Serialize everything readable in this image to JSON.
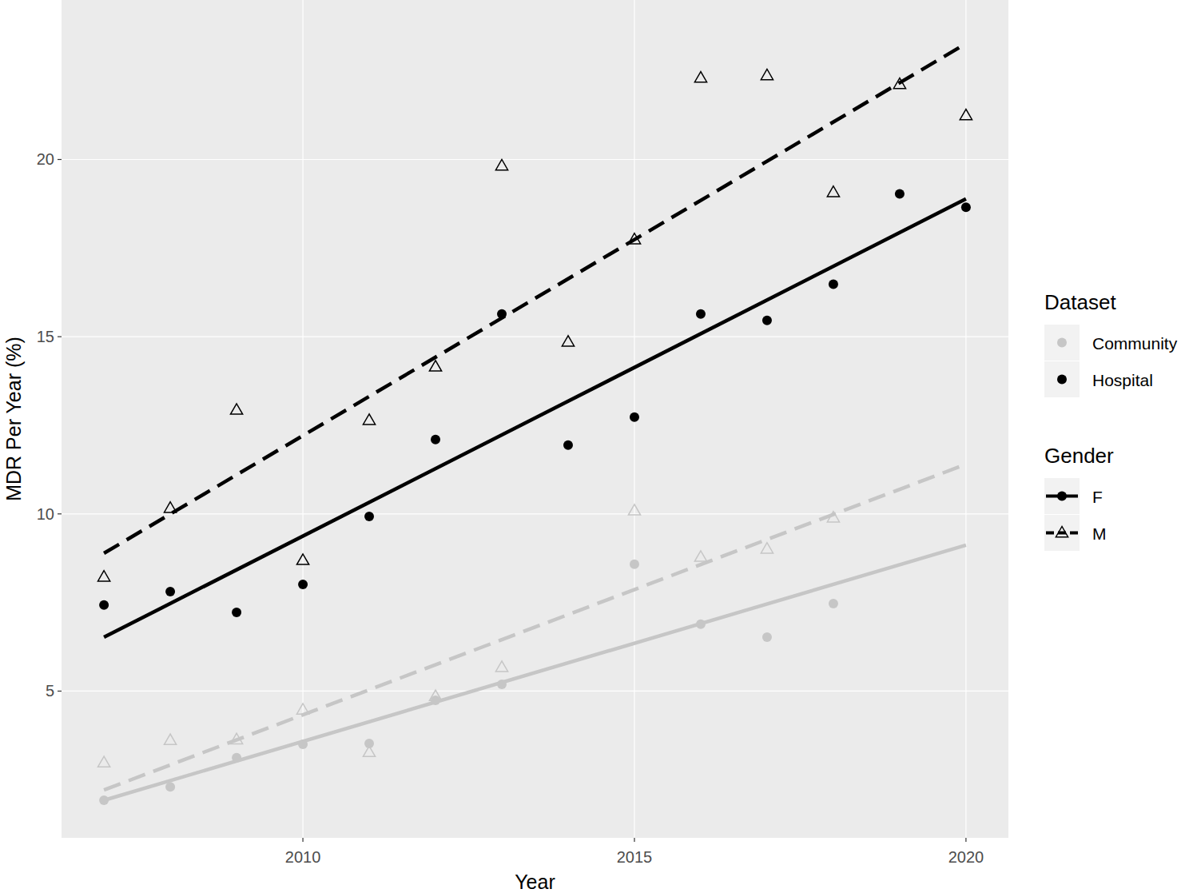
{
  "chart_data": {
    "type": "scatter",
    "x_label": "Year",
    "y_label": "MDR Per Year (%)",
    "xlim": [
      2006.36,
      2020.64
    ],
    "ylim": [
      0.86,
      24.5
    ],
    "xticks": [
      2010,
      2015,
      2020
    ],
    "yticks": [
      5,
      10,
      15,
      20
    ],
    "grid": true,
    "legend": "right",
    "x": [
      2007,
      2008,
      2009,
      2010,
      2011,
      2012,
      2013,
      2014,
      2015,
      2016,
      2017,
      2018,
      2019,
      2020
    ],
    "legend_groups": [
      {
        "title": "Dataset",
        "items": [
          {
            "label": "Community",
            "color": "#c6c6c6",
            "marker": "circle"
          },
          {
            "label": "Hospital",
            "color": "#000000",
            "marker": "circle"
          }
        ]
      },
      {
        "title": "Gender",
        "items": [
          {
            "label": "F",
            "color": "#000000",
            "marker": "circle",
            "line_style": "solid"
          },
          {
            "label": "M",
            "color": "#000000",
            "marker": "triangle",
            "line_style": "dashed"
          }
        ]
      }
    ],
    "series": [
      {
        "dataset": "Community",
        "gender": "F",
        "color": "#c6c6c6",
        "marker": "circle",
        "line_style": "solid",
        "values": [
          1.92,
          2.3,
          3.12,
          3.5,
          3.52,
          4.74,
          5.19,
          null,
          8.58,
          6.89,
          6.52,
          7.47,
          null,
          null
        ],
        "trend": {
          "x": [
            2007,
            2020
          ],
          "values": [
            1.92,
            9.12
          ]
        }
      },
      {
        "dataset": "Community",
        "gender": "M",
        "color": "#c6c6c6",
        "marker": "triangle",
        "line_style": "dashed",
        "values": [
          2.98,
          3.61,
          3.63,
          4.47,
          3.27,
          4.85,
          5.67,
          null,
          10.09,
          8.78,
          9.01,
          9.89,
          null,
          null
        ],
        "trend": {
          "x": [
            2007,
            2020
          ],
          "values": [
            2.21,
            11.4
          ]
        }
      },
      {
        "dataset": "Hospital",
        "gender": "F",
        "color": "#000000",
        "marker": "circle",
        "line_style": "solid",
        "values": [
          7.43,
          7.81,
          7.22,
          8.01,
          9.93,
          12.1,
          15.64,
          11.94,
          12.73,
          15.64,
          15.46,
          16.48,
          19.03,
          18.65
        ],
        "trend": {
          "x": [
            2007,
            2020
          ],
          "values": [
            6.52,
            18.89
          ]
        }
      },
      {
        "dataset": "Hospital",
        "gender": "M",
        "color": "#000000",
        "marker": "triangle",
        "line_style": "dashed",
        "values": [
          8.22,
          10.16,
          12.93,
          8.69,
          12.64,
          14.15,
          19.82,
          14.85,
          17.74,
          22.3,
          22.37,
          19.07,
          22.12,
          21.24
        ],
        "trend": {
          "x": [
            2007,
            2020
          ],
          "values": [
            8.89,
            23.27
          ]
        }
      }
    ]
  }
}
